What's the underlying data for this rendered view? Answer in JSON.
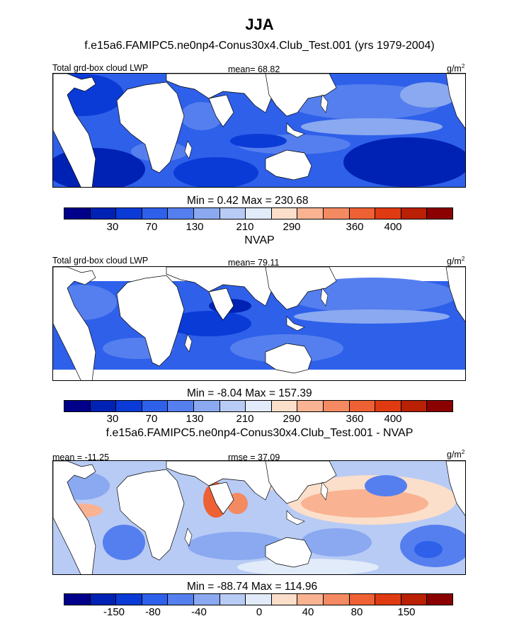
{
  "title": "JJA",
  "subtitle": "f.e15a6.FAMIPC5.ne0np4-Conus30x4.Club_Test.001 (yrs 1979-2004)",
  "colors": {
    "abs_scale": [
      "#00008b",
      "#0022b4",
      "#0a3bd6",
      "#2e60ea",
      "#557fee",
      "#8aa9f0",
      "#b8cbf5",
      "#e1ebf9",
      "#fbdfca",
      "#f9b392",
      "#f48a62",
      "#ee6134",
      "#df3a12",
      "#b92004",
      "#8b0000"
    ],
    "diff_scale": [
      "#00008b",
      "#0022b4",
      "#0a3bd6",
      "#2e60ea",
      "#557fee",
      "#8aa9f0",
      "#b8cbf5",
      "#e1ebf9",
      "#fbdfca",
      "#f9b392",
      "#f48a62",
      "#ee6134",
      "#df3a12",
      "#b92004",
      "#8b0000"
    ],
    "land": "#ffffff",
    "coast": "#000000"
  },
  "chart_data": [
    {
      "type": "heatmap",
      "panel": "model",
      "left_label": "Total grd-box cloud LWP",
      "center_label": "mean=  68.82",
      "units": "g/m",
      "units_sup": "2",
      "minmax": "Min =   0.42 Max = 230.68",
      "colorbar_ticks": [
        "30",
        "70",
        "130",
        "210",
        "290",
        "360",
        "400"
      ],
      "mean": 68.82,
      "min": 0.42,
      "max": 230.68
    },
    {
      "type": "heatmap",
      "panel": "obs",
      "title": "NVAP",
      "left_label": "Total grd-box cloud LWP",
      "center_label": "mean=  79.11",
      "units": "g/m",
      "units_sup": "2",
      "minmax": "Min =  -8.04 Max = 157.39",
      "colorbar_ticks": [
        "30",
        "70",
        "130",
        "210",
        "290",
        "360",
        "400"
      ],
      "mean": 79.11,
      "min": -8.04,
      "max": 157.39
    },
    {
      "type": "heatmap",
      "panel": "difference",
      "title": "f.e15a6.FAMIPC5.ne0np4-Conus30x4.Club_Test.001 - NVAP",
      "left_label": "mean = -11.25",
      "center_label": "rmse =  37.09",
      "units": "g/m",
      "units_sup": "2",
      "minmax": "Min = -88.74 Max = 114.96",
      "colorbar_ticks": [
        "-150",
        "-80",
        "-40",
        "0",
        "40",
        "80",
        "150"
      ],
      "mean": -11.25,
      "rmse": 37.09,
      "min": -88.74,
      "max": 114.96
    }
  ]
}
